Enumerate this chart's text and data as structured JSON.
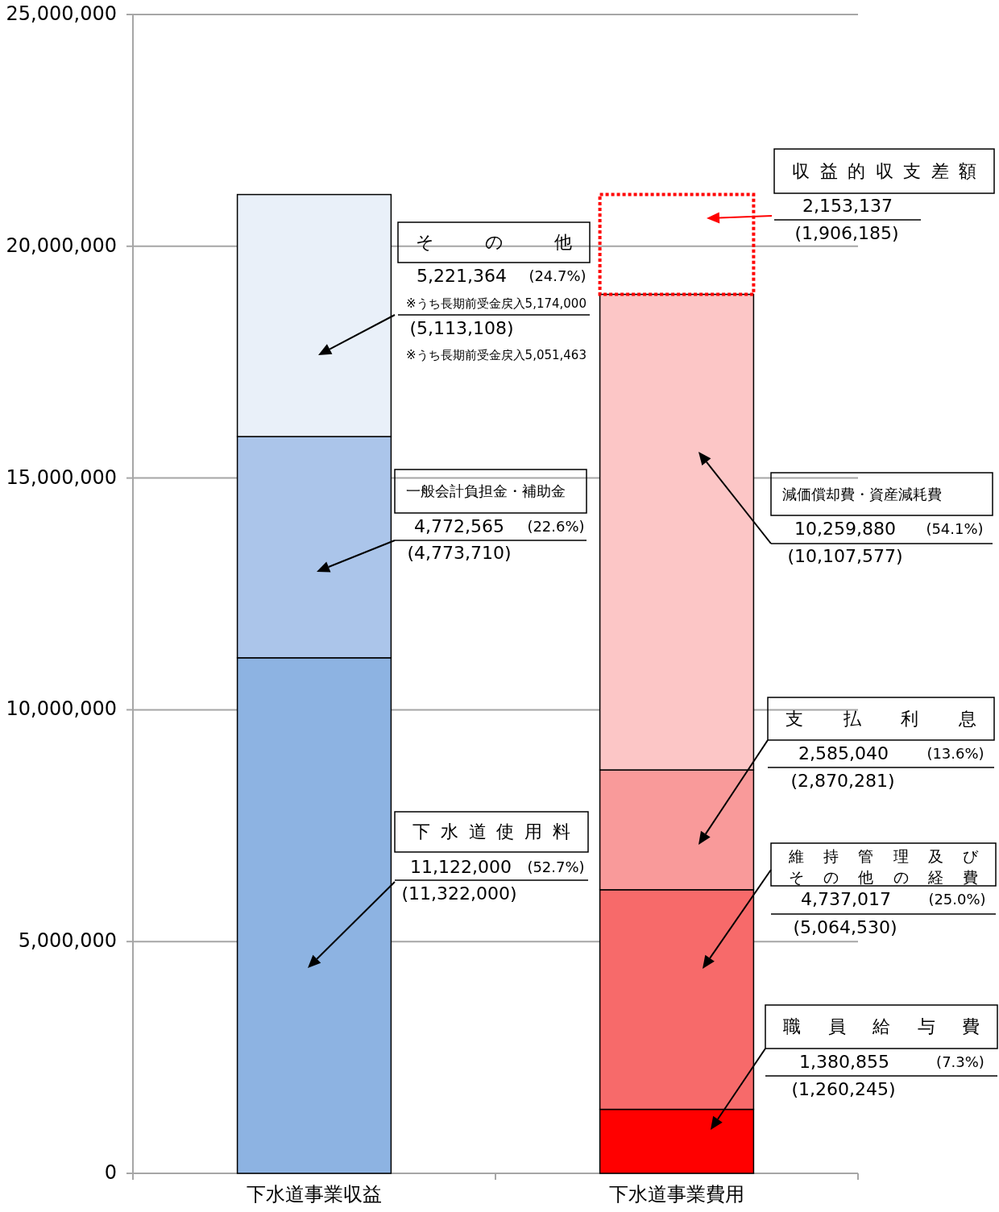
{
  "chart_data": {
    "type": "bar",
    "stacked": true,
    "categories": [
      "下水道事業収益",
      "下水道事業費用"
    ],
    "ylim": [
      0,
      25000000
    ],
    "yticks": [
      {
        "value": 0,
        "label": "0"
      },
      {
        "value": 5000000,
        "label": "5,000,000"
      },
      {
        "value": 10000000,
        "label": "10,000,000"
      },
      {
        "value": 15000000,
        "label": "15,000,000"
      },
      {
        "value": 20000000,
        "label": "20,000,000"
      },
      {
        "value": 25000000,
        "label": "25,000,000"
      }
    ],
    "grid": "y",
    "series": [
      {
        "name": "下水道使用料",
        "color": "#8db3e2",
        "values": [
          11122000,
          null
        ]
      },
      {
        "name": "一般会計負担金・補助金",
        "color": "#abc5ea",
        "values": [
          4772565,
          null
        ]
      },
      {
        "name": "その他",
        "color": "#e9f0f9",
        "values": [
          5221364,
          null
        ]
      },
      {
        "name": "職員給与費",
        "color": "#ff0000",
        "values": [
          null,
          1380855
        ]
      },
      {
        "name": "維持管理及びその他の経費",
        "color": "#f76a6a",
        "values": [
          null,
          4737017
        ]
      },
      {
        "name": "支払利息",
        "color": "#f99a9a",
        "values": [
          null,
          2585040
        ]
      },
      {
        "name": "減価償却費・資産減耗費",
        "color": "#fcc6c6",
        "values": [
          null,
          10259880
        ]
      },
      {
        "name": "収益的収支差額",
        "color": "#ff0000",
        "line_style": "dotted",
        "values": [
          null,
          2153137
        ]
      }
    ],
    "annotations": [
      "(52.7%)",
      "(11,322,000)",
      "(22.6%)",
      "(4,773,710)",
      "(24.7%)",
      "(5,113,108)",
      "※うち長期前受金戻入5,174,000",
      "※うち長期前受金戻入5,051,463",
      "(7.3%)",
      "(1,260,245)",
      "(25.0%)",
      "(5,064,530)",
      "(13.6%)",
      "(2,870,281)",
      "(54.1%)",
      "(10,107,577)",
      "(1,906,185)",
      "11,122,000",
      "4,772,565",
      "5,221,364",
      "1,380,855",
      "4,737,017",
      "2,585,040",
      "10,259,880",
      "2,153,137"
    ]
  }
}
